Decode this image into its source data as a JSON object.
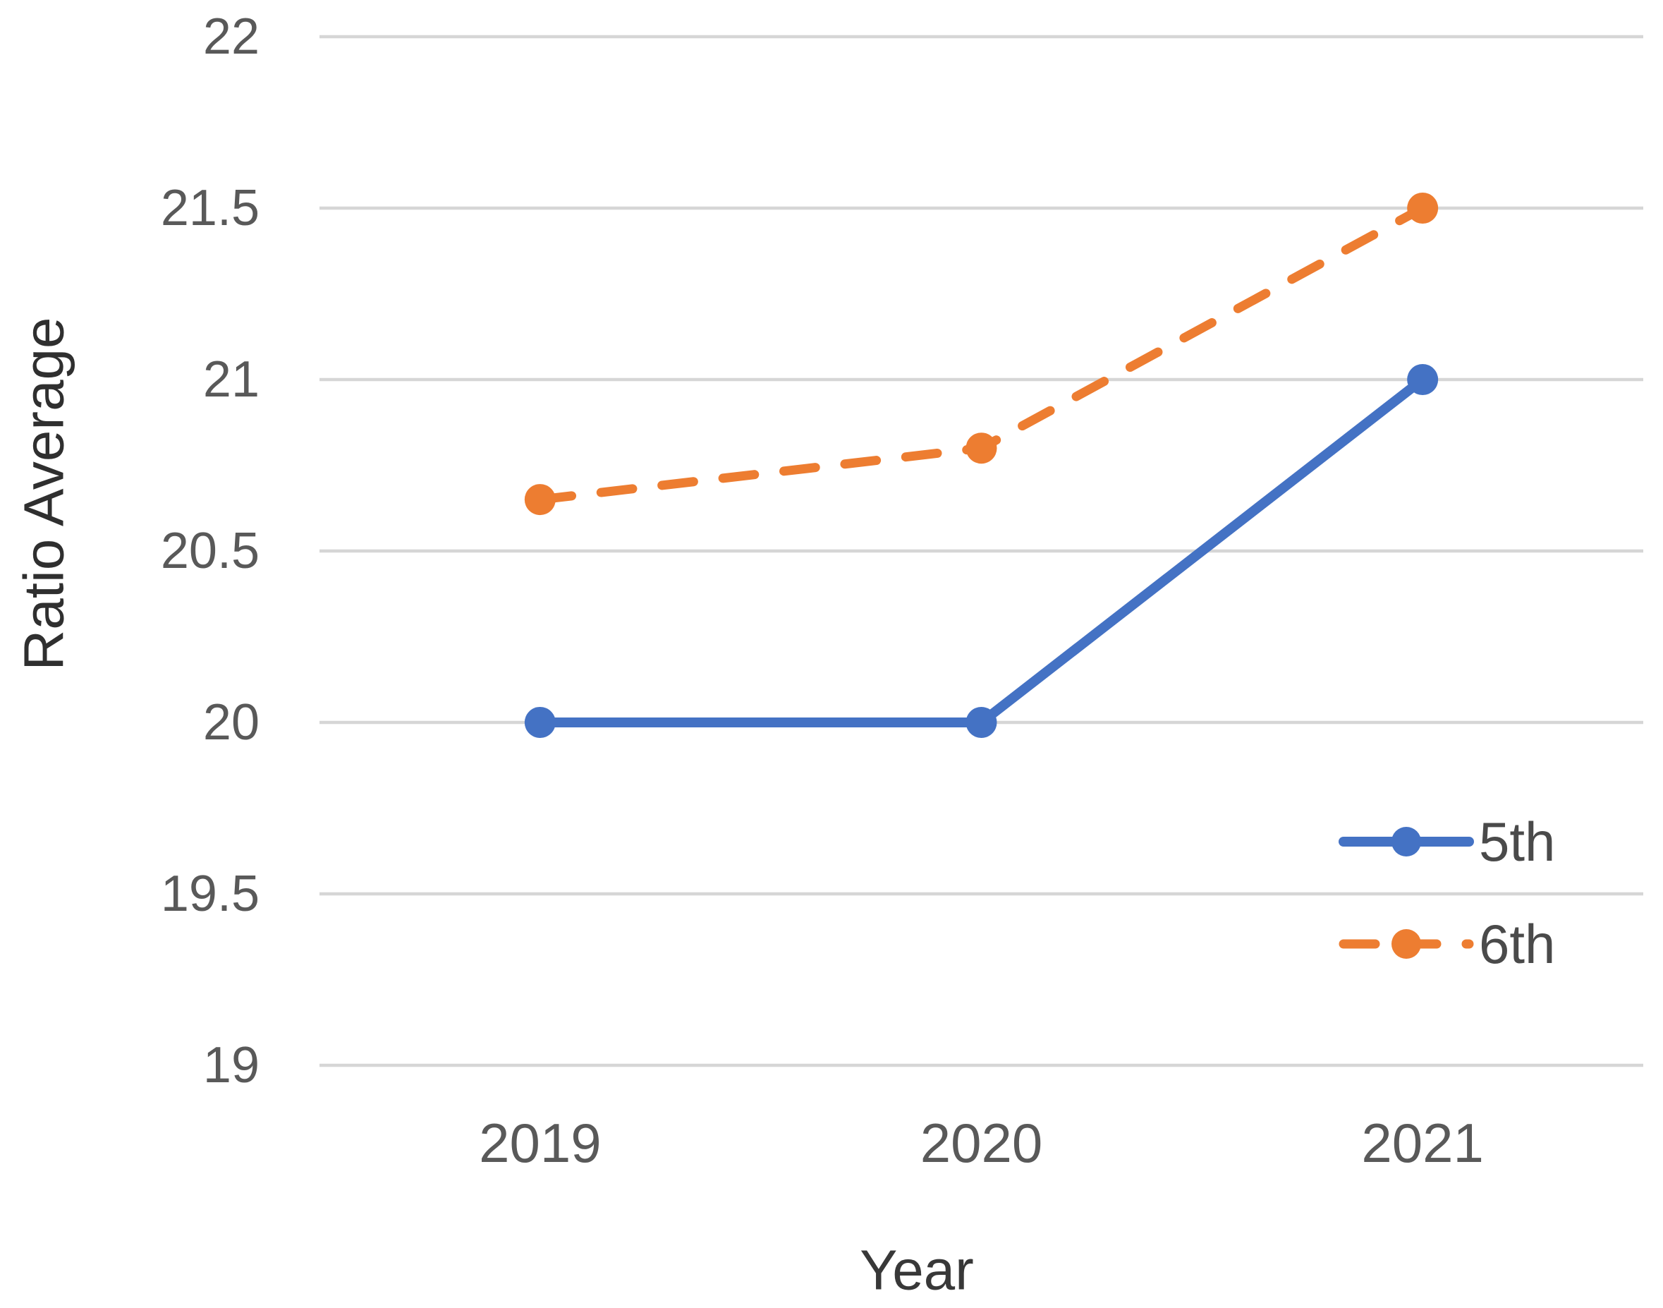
{
  "chart_data": {
    "type": "line",
    "title": "",
    "xlabel": "Year",
    "ylabel": "Ratio Average",
    "categories": [
      "2019",
      "2020",
      "2021"
    ],
    "series": [
      {
        "name": "5th",
        "values": [
          20.0,
          20.0,
          21.0
        ],
        "color": "#4472C4",
        "line_style": "solid",
        "marker": "circle"
      },
      {
        "name": "6th",
        "values": [
          20.65,
          20.8,
          21.5
        ],
        "color": "#ED7D31",
        "line_style": "dashed",
        "marker": "circle"
      }
    ],
    "ylim": [
      19,
      22
    ],
    "ytick_step": 0.5,
    "ytick_labels": [
      "19",
      "19.5",
      "20",
      "20.5",
      "21",
      "21.5",
      "22"
    ],
    "grid": "horizontal",
    "legend_position": "right-middle",
    "colors": {
      "background": "#ffffff",
      "gridline": "#d6d6d6",
      "tick_label": "#595959",
      "axis_title": "#333333",
      "legend_label": "#4a4a4a",
      "series_5th": "#4472C4",
      "series_6th": "#ED7D31"
    }
  }
}
